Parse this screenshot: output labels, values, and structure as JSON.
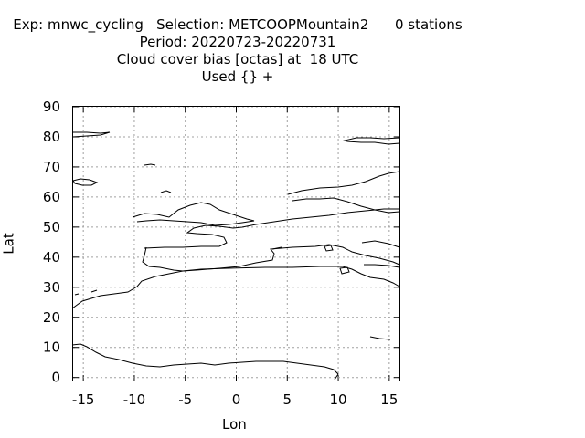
{
  "header": {
    "line1": "Exp: mnwc_cycling   Selection: METCOOPMountain2      0 stations",
    "line2": "Period: 20220723-20220731",
    "line3": "Cloud cover bias [octas] at  18 UTC",
    "line4": "Used {} +"
  },
  "axes": {
    "xlabel": "Lon",
    "ylabel": "Lat",
    "xlim": [
      -16,
      16
    ],
    "ylim": [
      -1,
      90
    ],
    "xticks": [
      "-15",
      "-10",
      "-5",
      "0",
      "5",
      "10",
      "15"
    ],
    "yticks": [
      "0",
      "10",
      "20",
      "30",
      "40",
      "50",
      "60",
      "70",
      "80",
      "90"
    ],
    "grid": true
  },
  "colors": {
    "coastline": "#000000",
    "grid": "#a0a0a0",
    "background": "#ffffff"
  }
}
